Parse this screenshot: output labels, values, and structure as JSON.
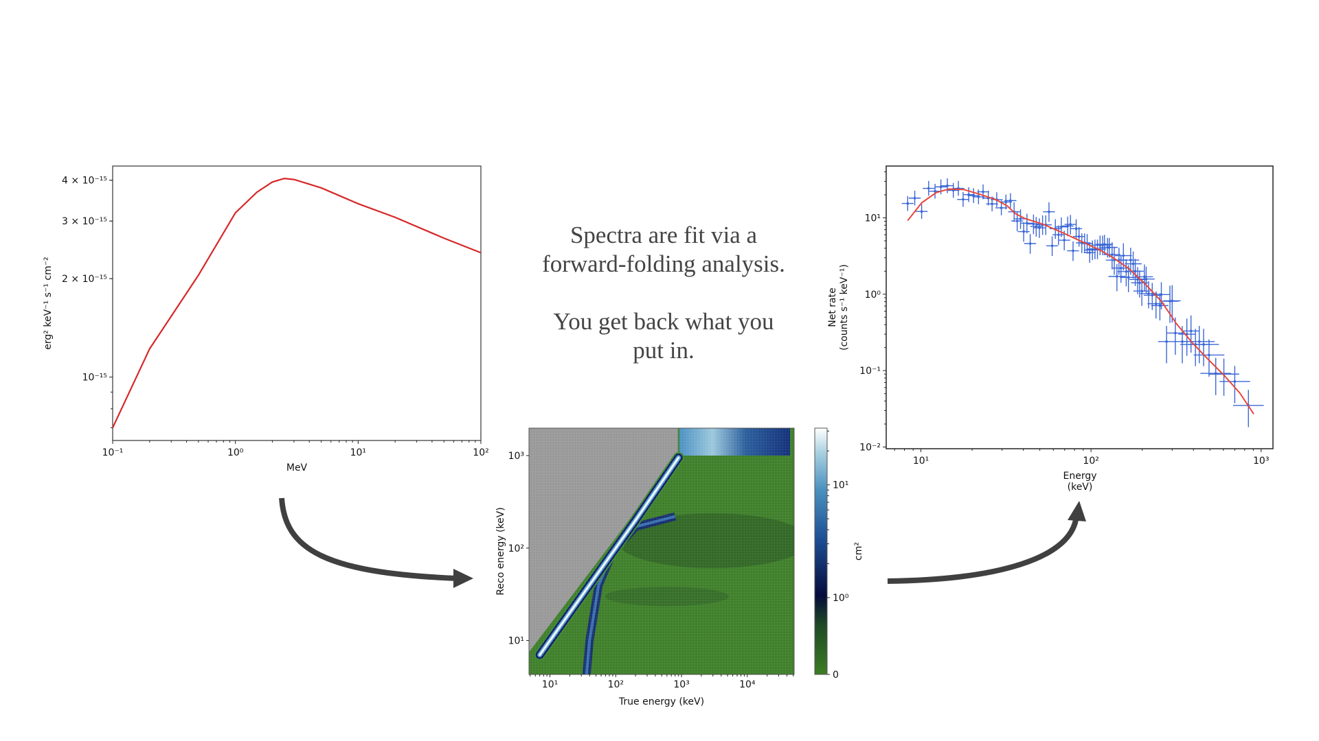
{
  "caption": {
    "line1": "Spectra are fit via a",
    "line2": "forward-folding analysis.",
    "line3": "You get back what you",
    "line4": "put in."
  },
  "colors": {
    "model_red": "#d62728",
    "data_blue": "#3a66d6",
    "arrow": "#404040",
    "caption_text": "#444444"
  },
  "chart_data": [
    {
      "type": "line",
      "xlabel": "MeV",
      "ylabel": "erg² keV⁻¹ s⁻¹ cm⁻²",
      "xscale": "log",
      "yscale": "log",
      "xlim": [
        0.1,
        100
      ],
      "ylim": [
        6.4e-16,
        4.42e-15
      ],
      "grid": false,
      "xticks": [
        {
          "v": 0.1,
          "label": "10⁻¹"
        },
        {
          "v": 1,
          "label": "10⁰"
        },
        {
          "v": 10,
          "label": "10¹"
        },
        {
          "v": 100,
          "label": "10²"
        }
      ],
      "yticks": [
        {
          "v": 1e-15,
          "label": "10⁻¹⁵"
        },
        {
          "v": 2e-15,
          "label": "2 × 10⁻¹⁵"
        },
        {
          "v": 3e-15,
          "label": "3 × 10⁻¹⁵"
        },
        {
          "v": 4e-15,
          "label": "4 × 10⁻¹⁵"
        }
      ],
      "series": [
        {
          "color": "#d62728",
          "x": [
            0.1,
            0.2,
            0.5,
            1,
            1.5,
            2,
            2.5,
            3,
            5,
            10,
            20,
            50,
            100
          ],
          "y": [
            7e-16,
            1.22e-15,
            2.05e-15,
            3.18e-15,
            3.68e-15,
            3.95e-15,
            4.05e-15,
            4.02e-15,
            3.79e-15,
            3.39e-15,
            3.08e-15,
            2.66e-15,
            2.4e-15
          ]
        }
      ]
    },
    {
      "type": "heatmap",
      "xlabel": "True energy (keV)",
      "ylabel": "Reco energy (keV)",
      "xscale": "log",
      "yscale": "log",
      "xlim": [
        4.8,
        51500
      ],
      "ylim": [
        4.3,
        1980
      ],
      "xticks": [
        {
          "v": 10,
          "label": "10¹"
        },
        {
          "v": 100,
          "label": "10²"
        },
        {
          "v": 1000,
          "label": "10³"
        },
        {
          "v": 10000,
          "label": "10⁴"
        }
      ],
      "yticks": [
        {
          "v": 10,
          "label": "10¹"
        },
        {
          "v": 100,
          "label": "10²"
        },
        {
          "v": 1000,
          "label": "10³"
        }
      ],
      "colorbar": {
        "label": "cm²",
        "scale": "symlog",
        "ticks": [
          {
            "v": 0,
            "label": "0"
          },
          {
            "v": 1,
            "label": "10⁰"
          },
          {
            "v": 10,
            "label": "10¹"
          }
        ],
        "colors": [
          "#3b7d23",
          "#0b1f2c",
          "#0c1a6b",
          "#2a6aad",
          "#9cc8dc",
          "#ffffff"
        ]
      },
      "features": {
        "masked_region_color": "#999999",
        "background_color": "#3f7f2a",
        "main_ridge": {
          "x": [
            7,
            20,
            60,
            200,
            900
          ],
          "y": [
            7,
            20,
            60,
            200,
            950
          ]
        },
        "secondary_ridge": {
          "x": [
            36,
            40,
            55,
            90,
            200,
            800
          ],
          "y": [
            4.3,
            10,
            40,
            90,
            170,
            220
          ]
        },
        "top_band": {
          "x_start": 930,
          "y_start": 1000
        }
      }
    },
    {
      "type": "scatter",
      "xlabel": "Energy\n(keV)",
      "xlabel_lines": [
        "Energy",
        "(keV)"
      ],
      "ylabel_lines": [
        "Net rate",
        "(counts s⁻¹ keV⁻¹)"
      ],
      "xscale": "log",
      "yscale": "log",
      "xlim": [
        6.25,
        1174
      ],
      "ylim": [
        0.0095,
        47.6
      ],
      "grid": false,
      "xticks": [
        {
          "v": 10,
          "label": "10¹"
        },
        {
          "v": 100,
          "label": "10²"
        },
        {
          "v": 1000,
          "label": "10³"
        }
      ],
      "yticks": [
        {
          "v": 0.01,
          "label": "10⁻²"
        },
        {
          "v": 0.1,
          "label": "10⁻¹"
        },
        {
          "v": 1,
          "label": "10⁰"
        },
        {
          "v": 10,
          "label": "10¹"
        }
      ],
      "series": [
        {
          "kind": "errorbar",
          "color": "#3a66d6",
          "x": [
            8.36,
            9.2,
            10.1,
            11.1,
            12.1,
            13.1,
            14.3,
            15.5,
            16.6,
            17.7,
            19.1,
            20.4,
            21.8,
            23.2,
            24.9,
            26.2,
            27.9,
            29.7,
            31.6,
            33.6,
            35.3,
            36.8,
            38.5,
            40.2,
            42.0,
            43.9,
            45.9,
            47.6,
            49.7,
            51.9,
            54.2,
            56.6,
            59.1,
            61.7,
            64.4,
            66.9,
            69.6,
            72.9,
            75.7,
            78.4,
            81.8,
            85.0,
            88.3,
            91.7,
            94.9,
            98.2,
            101.9,
            105.5,
            109.1,
            113,
            117,
            120,
            125,
            128,
            133,
            137,
            142,
            146,
            150,
            155,
            161,
            166,
            171,
            177,
            182,
            188,
            193,
            199,
            206,
            211,
            218,
            229,
            241,
            254,
            259,
            278,
            291,
            300,
            313,
            344,
            366,
            387,
            411,
            433,
            459,
            494,
            541,
            604,
            700,
            842
          ],
          "y": [
            15.4,
            18.1,
            12.1,
            24.3,
            22.3,
            25.4,
            26.3,
            22.9,
            24.3,
            17.4,
            20.1,
            19.5,
            18.8,
            21.9,
            18.1,
            15.2,
            17.3,
            13.5,
            16.1,
            16.8,
            12.0,
            9.1,
            9.7,
            6.6,
            8.5,
            4.6,
            8.3,
            7.7,
            7.4,
            8.1,
            8.1,
            12.0,
            4.3,
            7.2,
            6.0,
            7.6,
            5.1,
            7.8,
            8.2,
            3.7,
            7.2,
            5.7,
            4.7,
            4.7,
            4.6,
            3.5,
            3.8,
            3.9,
            3.9,
            4.4,
            4.4,
            4.5,
            4.1,
            4.1,
            3.3,
            2.8,
            1.71,
            2.8,
            2.2,
            3.2,
            1.98,
            1.66,
            2.8,
            2.5,
            2.0,
            1.56,
            1.41,
            1.1,
            1.69,
            1.58,
            1.02,
            0.97,
            0.75,
            0.71,
            0.99,
            0.24,
            0.81,
            0.82,
            0.31,
            0.24,
            0.3,
            0.33,
            0.22,
            0.24,
            0.22,
            0.16,
            0.092,
            0.09,
            0.072,
            0.035
          ]
        },
        {
          "kind": "line",
          "color": "#e8463a",
          "x": [
            8.36,
            10.1,
            12.3,
            14.6,
            17.9,
            22.4,
            27.7,
            32.2,
            35.8,
            40.6,
            52.5,
            67.9,
            87.9,
            113,
            135,
            167,
            207,
            260,
            318,
            395,
            489,
            605,
            749,
            905
          ],
          "y": [
            9.2,
            15.7,
            21.4,
            23.8,
            23.4,
            20.2,
            17.2,
            14.3,
            11.4,
            9.85,
            8.2,
            6.4,
            4.9,
            3.77,
            3.0,
            2.16,
            1.38,
            0.8,
            0.41,
            0.23,
            0.14,
            0.087,
            0.051,
            0.027
          ]
        }
      ]
    }
  ]
}
